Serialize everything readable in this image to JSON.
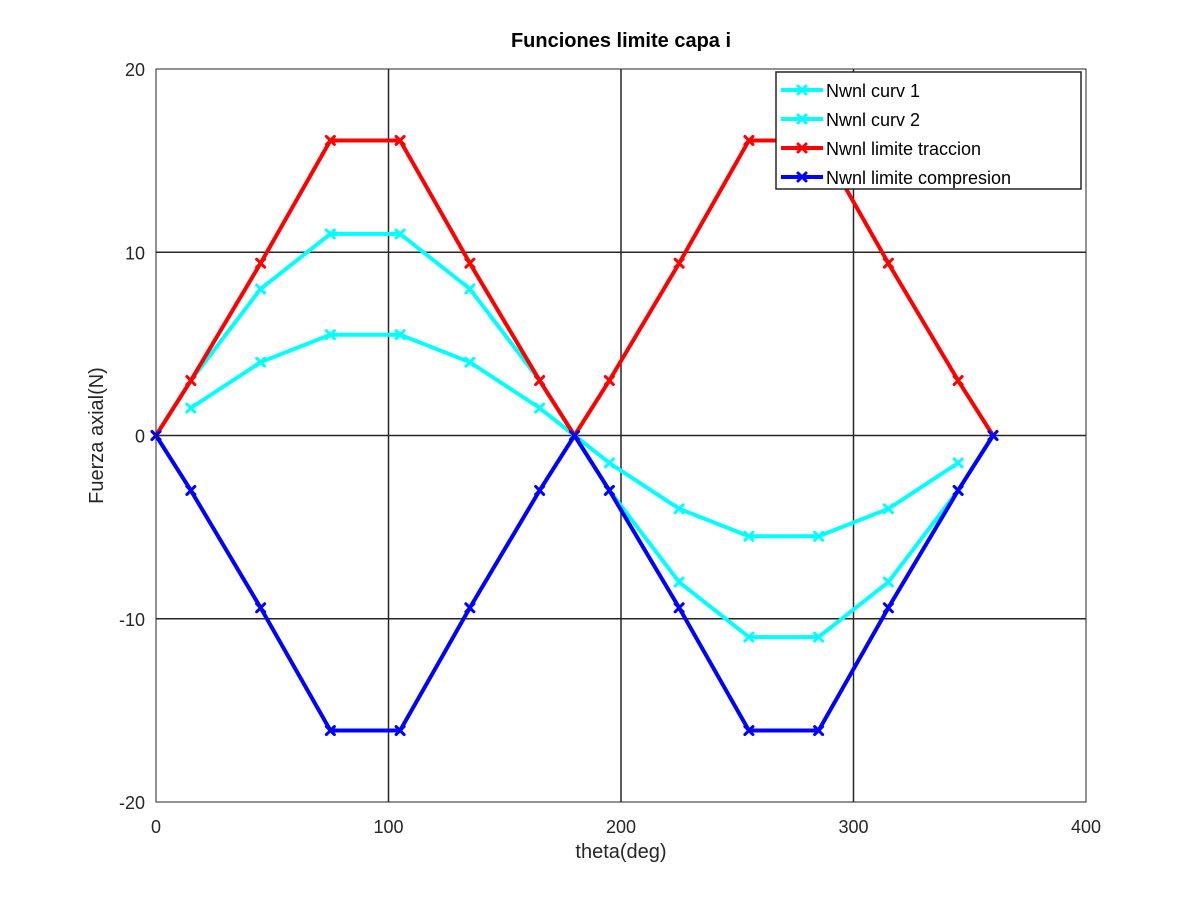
{
  "chart_data": {
    "type": "line",
    "title": "Funciones limite capa i",
    "xlabel": "theta(deg)",
    "ylabel": "Fuerza axial(N)",
    "xlim": [
      0,
      400
    ],
    "ylim": [
      -20,
      20
    ],
    "xticks": [
      0,
      100,
      200,
      300,
      400
    ],
    "yticks": [
      -20,
      -10,
      0,
      10,
      20
    ],
    "grid": true,
    "legend_position": "top-right",
    "series": [
      {
        "name": "Nwnl curv 1",
        "color": "#00FFFF",
        "x": [
          15,
          45,
          75,
          105,
          135,
          165,
          180,
          195,
          225,
          255,
          285,
          315,
          345
        ],
        "y": [
          1.5,
          4.0,
          5.5,
          5.5,
          4.0,
          1.5,
          0,
          -1.5,
          -4.0,
          -5.5,
          -5.5,
          -4.0,
          -1.5
        ]
      },
      {
        "name": "Nwnl curv 2",
        "color": "#00FFFF",
        "x": [
          0,
          15,
          45,
          75,
          105,
          135,
          165,
          180,
          195,
          225,
          255,
          285,
          315,
          345,
          360
        ],
        "y": [
          0,
          3.0,
          8.0,
          11.0,
          11.0,
          8.0,
          3.0,
          0,
          -3.0,
          -8.0,
          -11.0,
          -11.0,
          -8.0,
          -3.0,
          0
        ]
      },
      {
        "name": "Nwnl limite traccion",
        "color": "#FF0000",
        "x": [
          0,
          15,
          45,
          75,
          105,
          135,
          165,
          180,
          195,
          225,
          255,
          285,
          315,
          345,
          360
        ],
        "y": [
          0,
          3.0,
          9.4,
          16.1,
          16.1,
          9.4,
          3.0,
          0,
          3.0,
          9.4,
          16.1,
          16.1,
          9.4,
          3.0,
          0
        ]
      },
      {
        "name": "Nwnl limite compresion",
        "color": "#0000FF",
        "x": [
          0,
          15,
          45,
          75,
          105,
          135,
          165,
          180,
          195,
          225,
          255,
          285,
          315,
          345,
          360
        ],
        "y": [
          0,
          -3.0,
          -9.4,
          -16.1,
          -16.1,
          -9.4,
          -3.0,
          0,
          -3.0,
          -9.4,
          -16.1,
          -16.1,
          -9.4,
          -3.0,
          0
        ]
      }
    ]
  }
}
